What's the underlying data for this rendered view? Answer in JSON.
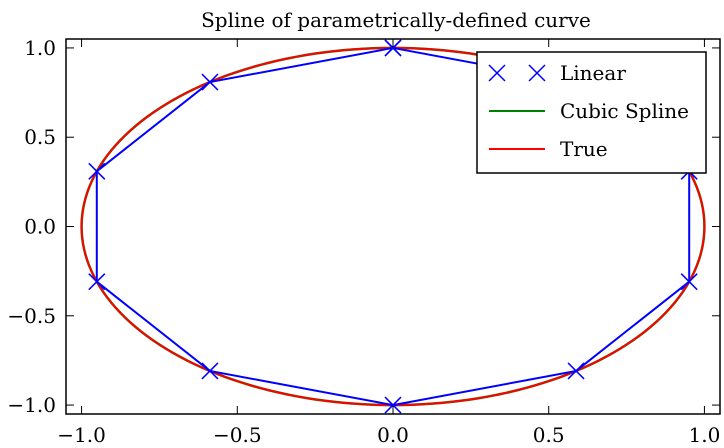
{
  "chart_data": {
    "type": "line",
    "title": "Spline of parametrically-defined curve",
    "xlabel": "",
    "ylabel": "",
    "xlim": [
      -1.05,
      1.05
    ],
    "ylim": [
      -1.05,
      1.05
    ],
    "xticks": [
      -1.0,
      -0.5,
      0.0,
      0.5,
      1.0
    ],
    "xtick_labels": [
      "−1.0",
      "−0.5",
      "0.0",
      "0.5",
      "1.0"
    ],
    "yticks": [
      -1.0,
      -0.5,
      0.0,
      0.5,
      1.0
    ],
    "ytick_labels": [
      "−1.0",
      "−0.5",
      "0.0",
      "0.5",
      "1.0"
    ],
    "grid": false,
    "legend_position": "top-right",
    "series": [
      {
        "name": "Linear",
        "color": "#0000ff",
        "marker": "x",
        "x": [
          0.0,
          0.5878,
          0.9511,
          0.9511,
          0.5878,
          0.0,
          -0.5878,
          -0.9511,
          -0.9511,
          -0.5878,
          0.0
        ],
        "y": [
          1.0,
          0.809,
          0.309,
          -0.309,
          -0.809,
          -1.0,
          -0.809,
          -0.309,
          0.309,
          0.809,
          1.0
        ]
      },
      {
        "name": "Cubic Spline",
        "color": "#008000",
        "shape": "circle",
        "x_radius": 1.0,
        "y_radius": 1.0
      },
      {
        "name": "True",
        "color": "#ff0000",
        "shape": "circle",
        "x_radius": 1.0,
        "y_radius": 1.0
      }
    ]
  }
}
